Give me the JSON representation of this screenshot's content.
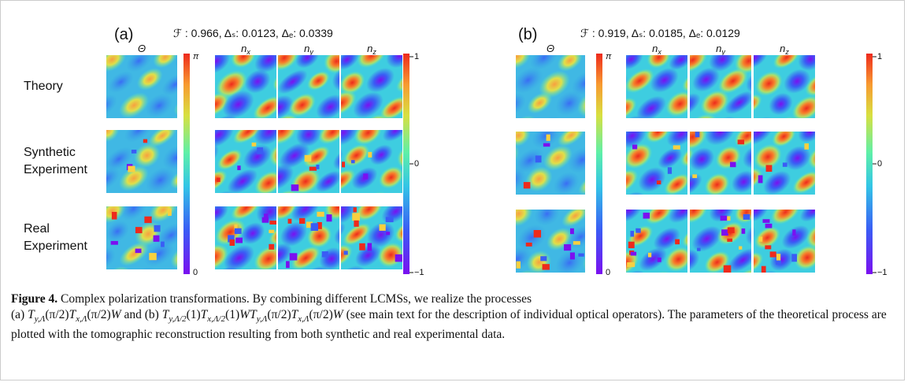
{
  "panels": [
    {
      "label": "(a)",
      "metrics": "ℱ : 0.966, Δₛ: 0.0123, Δₑ: 0.0339",
      "headers": [
        {
          "base": "Θ"
        },
        {
          "base": "n",
          "sub": "x"
        },
        {
          "base": "n",
          "sub": "y"
        },
        {
          "base": "n",
          "sub": "z"
        }
      ],
      "row_labels": [
        [
          "Theory"
        ],
        [
          "Synthetic",
          "Experiment"
        ],
        [
          "Real",
          "Experiment"
        ]
      ],
      "theta_colorbar": {
        "top": "π",
        "bottom": "0"
      },
      "n_colorbar": {
        "top": "1",
        "middle": "0",
        "bottom": "−1"
      }
    },
    {
      "label": "(b)",
      "metrics": "ℱ : 0.919, Δₛ: 0.0185, Δₑ: 0.0129",
      "headers": [
        {
          "base": "Θ"
        },
        {
          "base": "n",
          "sub": "x"
        },
        {
          "base": "n",
          "sub": "y"
        },
        {
          "base": "n",
          "sub": "z"
        }
      ],
      "theta_colorbar": {
        "top": "π",
        "bottom": "0"
      },
      "n_colorbar": {
        "top": "1",
        "middle": "0",
        "bottom": "−1"
      }
    }
  ],
  "caption": {
    "label": "Figure 4.",
    "lead": " Complex polarization transformations. By combining different LCMSs, we realize the processes",
    "parts": [
      {
        "t": "(a) "
      },
      {
        "i": "T",
        "sub": "y,Λ"
      },
      {
        "t": "(π/2)"
      },
      {
        "i": "T",
        "sub": "x,Λ"
      },
      {
        "t": "(π/2)"
      },
      {
        "i": "W"
      },
      {
        "t": " and (b) "
      },
      {
        "i": "T",
        "sub": "y,Λ/2"
      },
      {
        "t": "(1)"
      },
      {
        "i": "T",
        "sub": "x,Λ/2"
      },
      {
        "t": "(1)"
      },
      {
        "i": "W"
      },
      {
        "i": "T",
        "sub": "y,Λ"
      },
      {
        "t": "(π/2)"
      },
      {
        "i": "T",
        "sub": "x,Λ"
      },
      {
        "t": "(π/2)"
      },
      {
        "i": "W"
      },
      {
        "t": " (see main text for the description of individual optical operators). The parameters of the theoretical process are plotted with the tomographic reconstruction resulting from both synthetic and real experimental data."
      }
    ]
  }
}
